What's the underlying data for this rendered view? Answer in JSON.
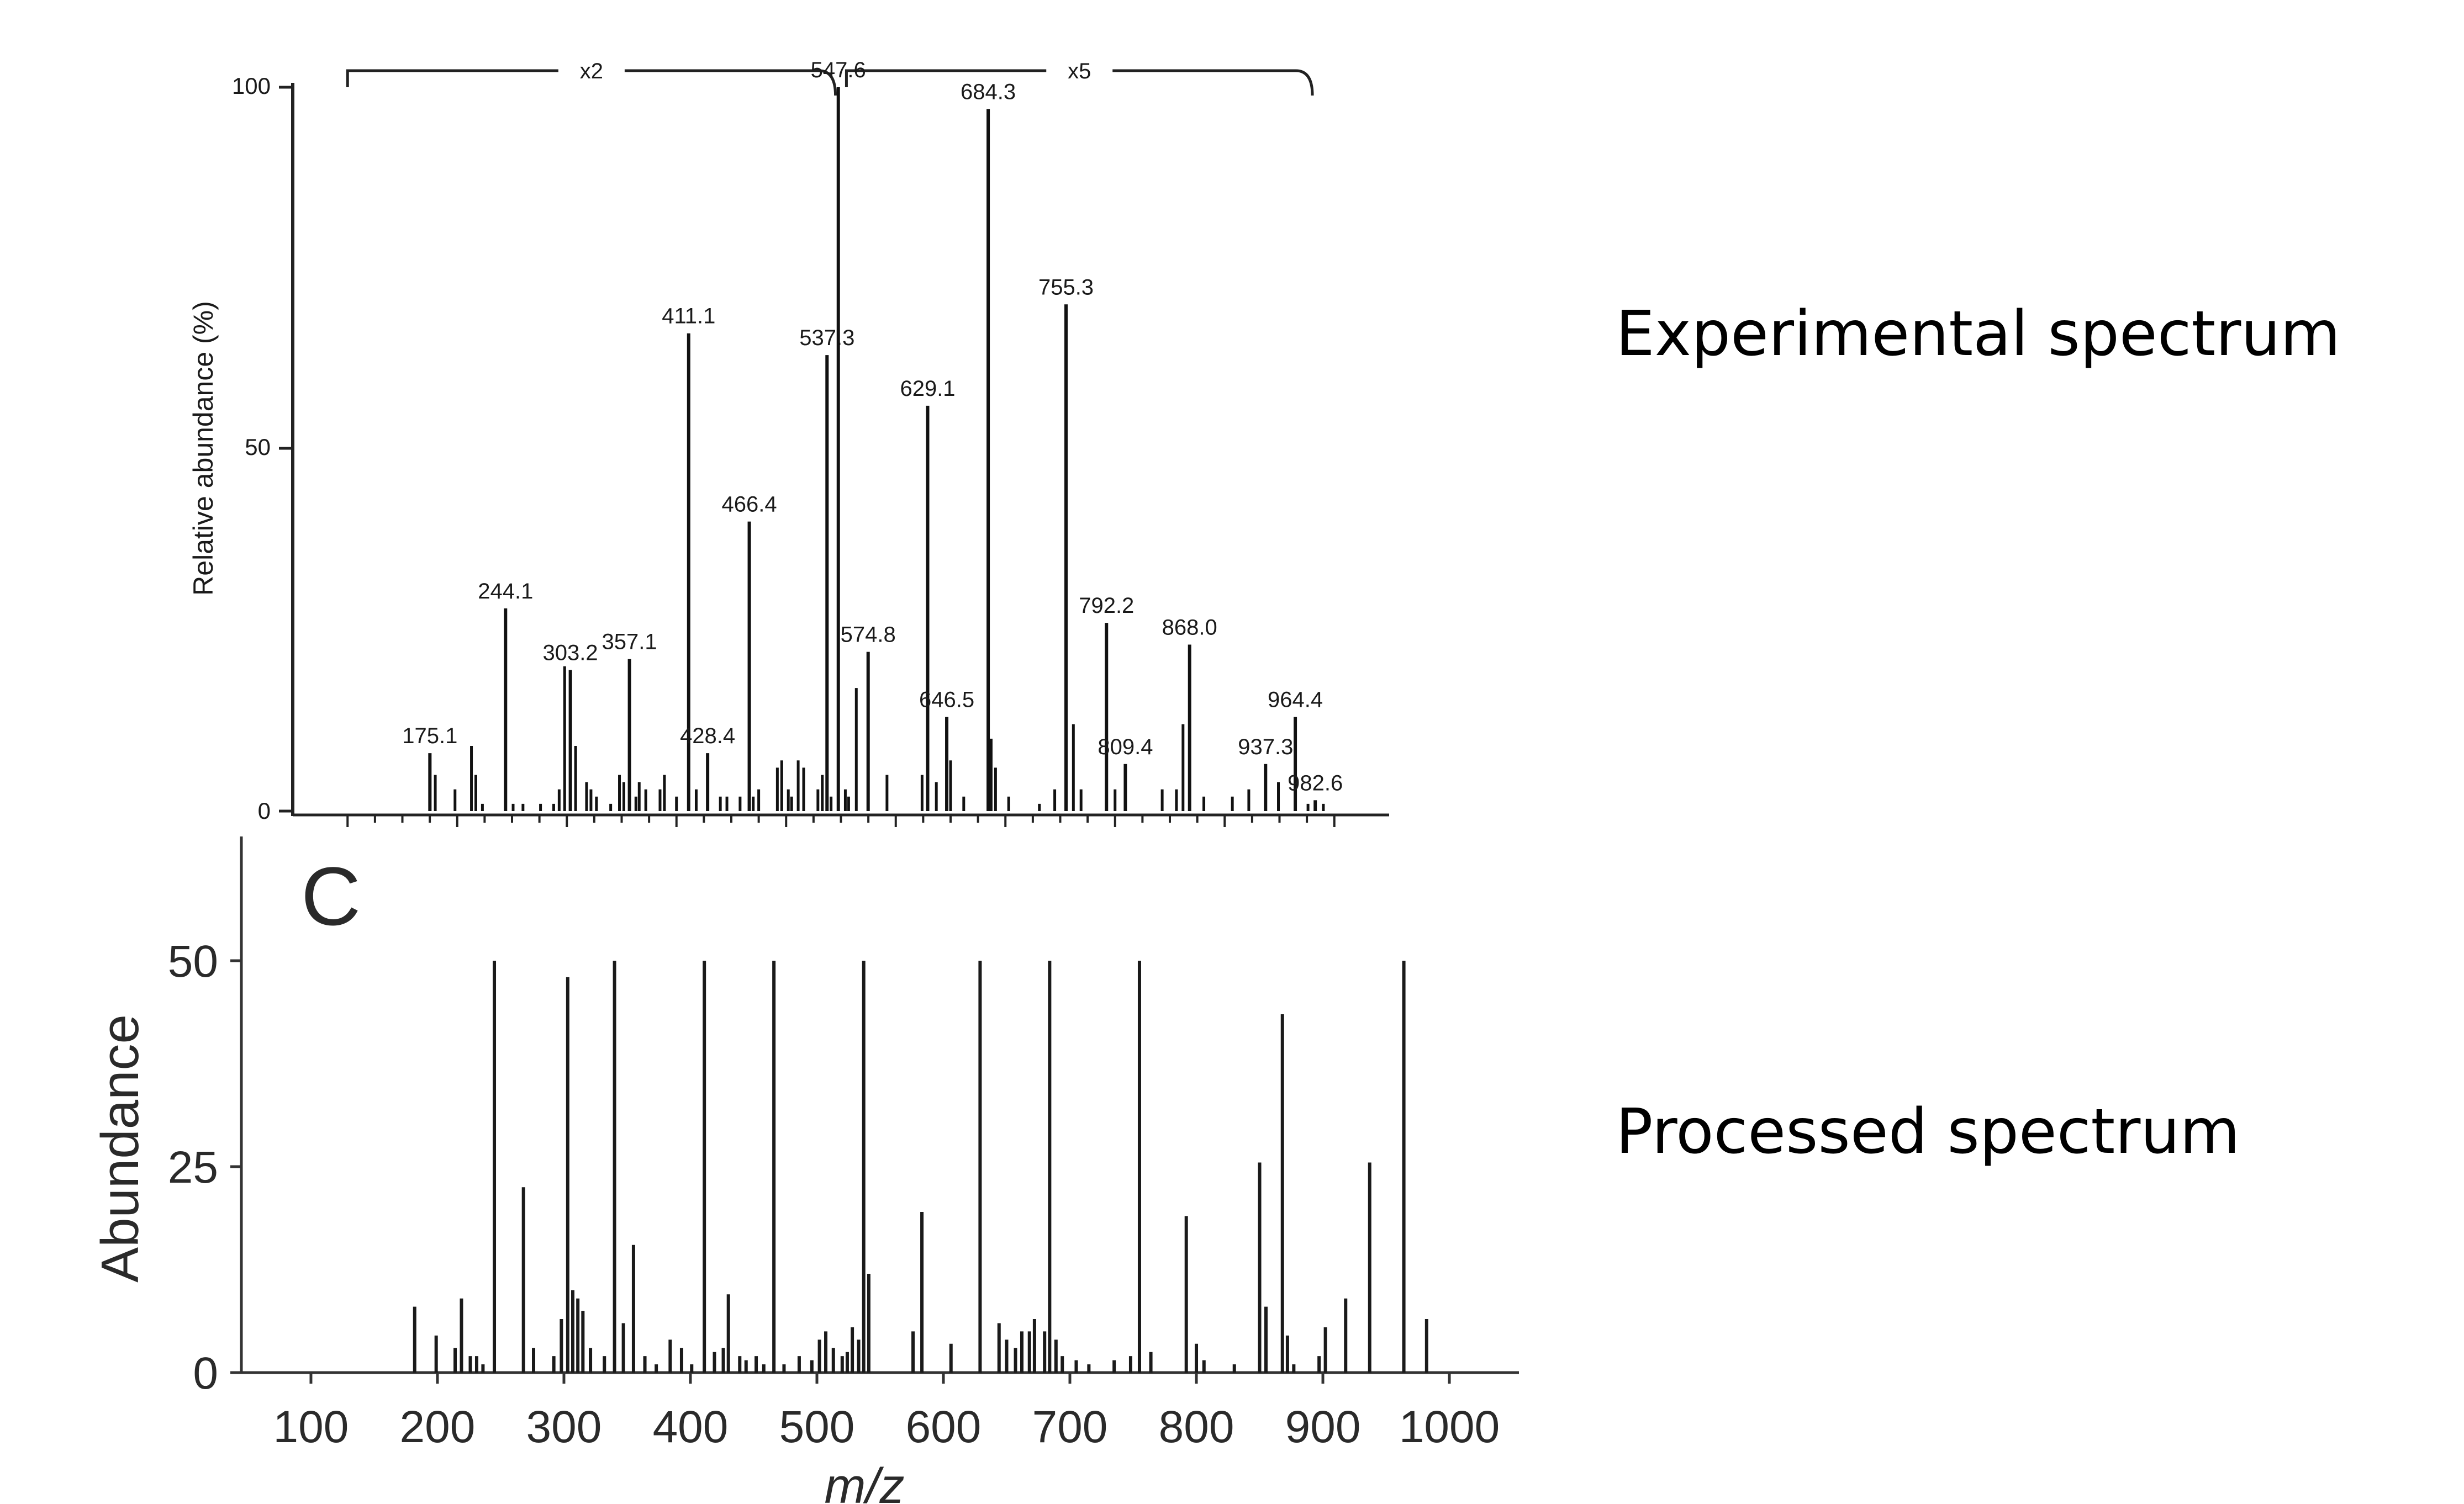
{
  "labels": {
    "experimental": "Experimental spectrum",
    "processed": "Processed spectrum"
  },
  "chart_data": [
    {
      "type": "bar",
      "ylabel": "Relative abundance (%)",
      "xlabel": "",
      "ylim": [
        0,
        100
      ],
      "xlim": [
        50,
        1050
      ],
      "y_ticks": [
        "0",
        "50",
        "100"
      ],
      "scale_annotations": [
        {
          "label": "x2",
          "from": 100,
          "to": 545
        },
        {
          "label": "x5",
          "from": 555,
          "to": 980
        }
      ],
      "peaks": [
        {
          "mz": 175.1,
          "value": 8,
          "label": "175.1"
        },
        {
          "mz": 244.1,
          "value": 28,
          "label": "244.1"
        },
        {
          "mz": 303.2,
          "value": 19.5,
          "label": "303.2"
        },
        {
          "mz": 357.1,
          "value": 21,
          "label": "357.1"
        },
        {
          "mz": 411.1,
          "value": 66,
          "label": "411.1"
        },
        {
          "mz": 428.4,
          "value": 8,
          "label": "428.4"
        },
        {
          "mz": 466.4,
          "value": 40,
          "label": "466.4"
        },
        {
          "mz": 537.3,
          "value": 63,
          "label": "537.3"
        },
        {
          "mz": 547.6,
          "value": 100,
          "label": "547.6"
        },
        {
          "mz": 574.8,
          "value": 22,
          "label": "574.8"
        },
        {
          "mz": 629.1,
          "value": 56,
          "label": "629.1"
        },
        {
          "mz": 646.5,
          "value": 13,
          "label": "646.5"
        },
        {
          "mz": 684.3,
          "value": 97,
          "label": "684.3"
        },
        {
          "mz": 755.3,
          "value": 70,
          "label": "755.3"
        },
        {
          "mz": 792.2,
          "value": 26,
          "label": "792.2"
        },
        {
          "mz": 809.4,
          "value": 6.5,
          "label": "809.4"
        },
        {
          "mz": 868.0,
          "value": 23,
          "label": "868.0"
        },
        {
          "mz": 937.3,
          "value": 6.5,
          "label": "937.3"
        },
        {
          "mz": 964.4,
          "value": 13,
          "label": "964.4"
        },
        {
          "mz": 982.6,
          "value": 1.5,
          "label": "982.6"
        }
      ],
      "minor_peaks": [
        [
          180,
          5
        ],
        [
          198,
          3
        ],
        [
          213,
          9
        ],
        [
          217,
          5
        ],
        [
          223,
          1
        ],
        [
          251,
          1
        ],
        [
          260,
          1
        ],
        [
          276,
          1
        ],
        [
          288,
          1
        ],
        [
          293,
          3
        ],
        [
          298,
          20
        ],
        [
          308,
          9
        ],
        [
          318,
          4
        ],
        [
          322,
          3
        ],
        [
          327,
          2
        ],
        [
          340,
          1
        ],
        [
          348,
          5
        ],
        [
          352,
          4
        ],
        [
          363,
          2
        ],
        [
          366,
          4
        ],
        [
          372,
          3
        ],
        [
          385,
          3
        ],
        [
          389,
          5
        ],
        [
          400,
          2
        ],
        [
          418,
          3
        ],
        [
          440,
          2
        ],
        [
          446,
          2
        ],
        [
          458,
          2
        ],
        [
          470,
          2
        ],
        [
          475,
          3
        ],
        [
          492,
          6
        ],
        [
          496,
          7
        ],
        [
          502,
          3
        ],
        [
          505,
          2
        ],
        [
          511,
          7
        ],
        [
          516,
          6
        ],
        [
          529,
          3
        ],
        [
          533,
          5
        ],
        [
          541,
          2
        ],
        [
          554,
          3
        ],
        [
          557,
          2
        ],
        [
          564,
          17
        ],
        [
          592,
          5
        ],
        [
          624,
          5
        ],
        [
          637,
          4
        ],
        [
          650,
          7
        ],
        [
          662,
          2
        ],
        [
          687,
          10
        ],
        [
          691,
          6
        ],
        [
          703,
          2
        ],
        [
          731,
          1
        ],
        [
          745,
          3
        ],
        [
          762,
          12
        ],
        [
          769,
          3
        ],
        [
          800,
          3
        ],
        [
          843,
          3
        ],
        [
          856,
          3
        ],
        [
          862,
          12
        ],
        [
          881,
          2
        ],
        [
          907,
          2
        ],
        [
          922,
          3
        ],
        [
          949,
          4
        ],
        [
          976,
          1
        ],
        [
          990,
          1
        ]
      ]
    },
    {
      "type": "bar",
      "panel_label": "C",
      "xlabel": "m/z",
      "ylabel": "Abundance",
      "ylim": [
        0,
        63
      ],
      "xlim": [
        45,
        1055
      ],
      "x_ticks": [
        "100",
        "200",
        "300",
        "400",
        "500",
        "600",
        "700",
        "800",
        "900",
        "1000"
      ],
      "y_ticks": [
        "0",
        "25",
        "50"
      ],
      "peaks": [
        [
          182,
          8
        ],
        [
          199,
          4.5
        ],
        [
          214,
          3
        ],
        [
          219,
          9
        ],
        [
          226,
          2
        ],
        [
          231,
          2
        ],
        [
          236,
          1
        ],
        [
          245,
          50
        ],
        [
          268,
          22.5
        ],
        [
          276,
          3
        ],
        [
          292,
          2
        ],
        [
          298,
          6.5
        ],
        [
          303,
          48
        ],
        [
          307,
          10
        ],
        [
          311,
          9
        ],
        [
          315,
          7.5
        ],
        [
          321,
          3
        ],
        [
          332,
          2
        ],
        [
          340,
          50
        ],
        [
          347,
          6
        ],
        [
          355,
          15.5
        ],
        [
          364,
          2
        ],
        [
          373,
          1
        ],
        [
          384,
          4
        ],
        [
          393,
          3
        ],
        [
          401,
          1
        ],
        [
          411,
          50
        ],
        [
          419,
          2.5
        ],
        [
          426,
          3
        ],
        [
          430,
          9.5
        ],
        [
          439,
          2
        ],
        [
          444,
          1.5
        ],
        [
          452,
          2
        ],
        [
          458,
          1
        ],
        [
          466,
          50
        ],
        [
          474,
          1
        ],
        [
          486,
          2
        ],
        [
          496,
          1.5
        ],
        [
          502,
          4
        ],
        [
          507,
          5
        ],
        [
          513,
          3
        ],
        [
          520,
          2
        ],
        [
          524,
          2.5
        ],
        [
          528,
          5.5
        ],
        [
          533,
          4
        ],
        [
          537,
          50
        ],
        [
          541,
          12
        ],
        [
          576,
          5
        ],
        [
          583,
          19.5
        ],
        [
          606,
          3.5
        ],
        [
          629,
          50
        ],
        [
          644,
          6
        ],
        [
          650,
          4
        ],
        [
          657,
          3
        ],
        [
          662,
          5
        ],
        [
          668,
          5
        ],
        [
          672,
          6.5
        ],
        [
          680,
          5
        ],
        [
          684,
          50
        ],
        [
          689,
          4
        ],
        [
          694,
          2
        ],
        [
          705,
          1.5
        ],
        [
          715,
          1
        ],
        [
          735,
          1.5
        ],
        [
          748,
          2
        ],
        [
          755,
          50
        ],
        [
          764,
          2.5
        ],
        [
          792,
          19
        ],
        [
          800,
          3.5
        ],
        [
          806,
          1.5
        ],
        [
          830,
          1
        ],
        [
          850,
          25.5
        ],
        [
          855,
          8
        ],
        [
          868,
          43.5
        ],
        [
          872,
          4.5
        ],
        [
          877,
          1
        ],
        [
          897,
          2
        ],
        [
          902,
          5.5
        ],
        [
          918,
          9
        ],
        [
          937,
          25.5
        ],
        [
          964,
          50
        ],
        [
          982,
          6.5
        ]
      ]
    }
  ]
}
